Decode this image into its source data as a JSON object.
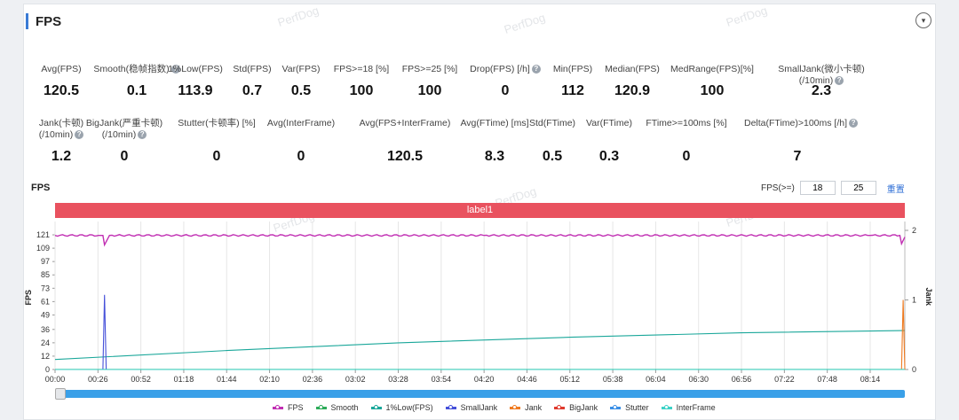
{
  "section": {
    "title": "FPS",
    "collapse_icon": "chevron-down-icon"
  },
  "watermark": "PerfDog",
  "stats_row1": [
    {
      "label": "Avg(FPS)",
      "value": "120.5"
    },
    {
      "label": "Smooth(稳帧指数)",
      "value": "0.1",
      "help": true
    },
    {
      "label": "1%Low(FPS)",
      "value": "113.9"
    },
    {
      "label": "Std(FPS)",
      "value": "0.7"
    },
    {
      "label": "Var(FPS)",
      "value": "0.5"
    },
    {
      "label": "FPS>=18 [%]",
      "value": "100"
    },
    {
      "label": "FPS>=25 [%]",
      "value": "100"
    },
    {
      "label": "Drop(FPS) [/h]",
      "value": "0",
      "help": true
    },
    {
      "label": "Min(FPS)",
      "value": "112"
    },
    {
      "label": "Median(FPS)",
      "value": "120.9"
    },
    {
      "label": "MedRange(FPS)[%]",
      "value": "100"
    },
    {
      "label": "SmallJank(微小卡顿)",
      "label2": "(/10min)",
      "value": "2.3",
      "help": true
    }
  ],
  "stats_row2": [
    {
      "label": "Jank(卡顿)",
      "label2": "(/10min)",
      "value": "1.2",
      "help": true
    },
    {
      "label": "BigJank(严重卡顿)",
      "label2": "(/10min)",
      "value": "0",
      "help": true
    },
    {
      "label": "Stutter(卡顿率) [%]",
      "value": "0"
    },
    {
      "label": "Avg(InterFrame)",
      "value": "0"
    },
    {
      "label": "Avg(FPS+InterFrame)",
      "value": "120.5"
    },
    {
      "label": "Avg(FTime) [ms]",
      "value": "8.3"
    },
    {
      "label": "Std(FTime)",
      "value": "0.5"
    },
    {
      "label": "Var(FTime)",
      "value": "0.3"
    },
    {
      "label": "FTime>=100ms [%]",
      "value": "0"
    },
    {
      "label": "Delta(FTime)>100ms [/h]",
      "value": "7",
      "help": true
    }
  ],
  "chart_header": {
    "title": "FPS",
    "filter_label": "FPS(>=)",
    "threshold_low": "18",
    "threshold_high": "25",
    "reset_label": "重置"
  },
  "label_bar": "label1",
  "chart_data": {
    "type": "line",
    "ylabel": "FPS",
    "ylabel_right": "Jank",
    "y_ticks": [
      0,
      12,
      24,
      36,
      49,
      61,
      73,
      85,
      97,
      109,
      121
    ],
    "y_right_ticks": [
      0,
      1,
      2
    ],
    "x_ticks": [
      "00:00",
      "00:26",
      "00:52",
      "01:18",
      "01:44",
      "02:10",
      "02:36",
      "03:02",
      "03:28",
      "03:54",
      "04:20",
      "04:46",
      "05:12",
      "05:38",
      "06:04",
      "06:30",
      "06:56",
      "07:22",
      "07:48",
      "08:14"
    ],
    "series": [
      {
        "name": "FPS",
        "color": "#c12fb3",
        "x": [
          "00:00",
          "00:26",
          "00:29",
          "00:30",
          "00:33",
          "04:20",
          "08:14",
          "08:32",
          "08:33",
          "08:35"
        ],
        "values": [
          120.5,
          120.5,
          120.5,
          112,
          120.5,
          120.5,
          120.5,
          120.5,
          113,
          119
        ]
      },
      {
        "name": "Smooth",
        "color": "#2eac5a",
        "x": [
          "00:00",
          "08:35"
        ],
        "values": [
          0.1,
          0.1
        ]
      },
      {
        "name": "1%Low(FPS)",
        "color": "#1aa79a",
        "x": [
          "00:00",
          "01:44",
          "03:28",
          "05:12",
          "06:56",
          "08:35"
        ],
        "values": [
          9,
          17,
          24,
          29,
          33,
          35
        ]
      },
      {
        "name": "SmallJank",
        "color": "#4550d9",
        "x": [
          "00:00",
          "00:29",
          "00:30",
          "00:31",
          "08:35"
        ],
        "values": [
          0,
          0,
          67,
          0,
          0
        ]
      },
      {
        "name": "Jank",
        "color": "#ef7b21",
        "x": [
          "00:00",
          "08:33",
          "08:34",
          "08:35"
        ],
        "values": [
          0,
          0,
          1,
          0
        ],
        "axis": "right"
      },
      {
        "name": "BigJank",
        "color": "#e03a2e",
        "x": [
          "00:00",
          "08:35"
        ],
        "values": [
          0,
          0
        ],
        "axis": "right"
      },
      {
        "name": "Stutter",
        "color": "#3b8fe6",
        "x": [
          "00:00",
          "08:35"
        ],
        "values": [
          0,
          0
        ]
      },
      {
        "name": "InterFrame",
        "color": "#3cd2c7",
        "x": [
          "00:00",
          "08:35"
        ],
        "values": [
          0,
          0
        ]
      }
    ]
  }
}
